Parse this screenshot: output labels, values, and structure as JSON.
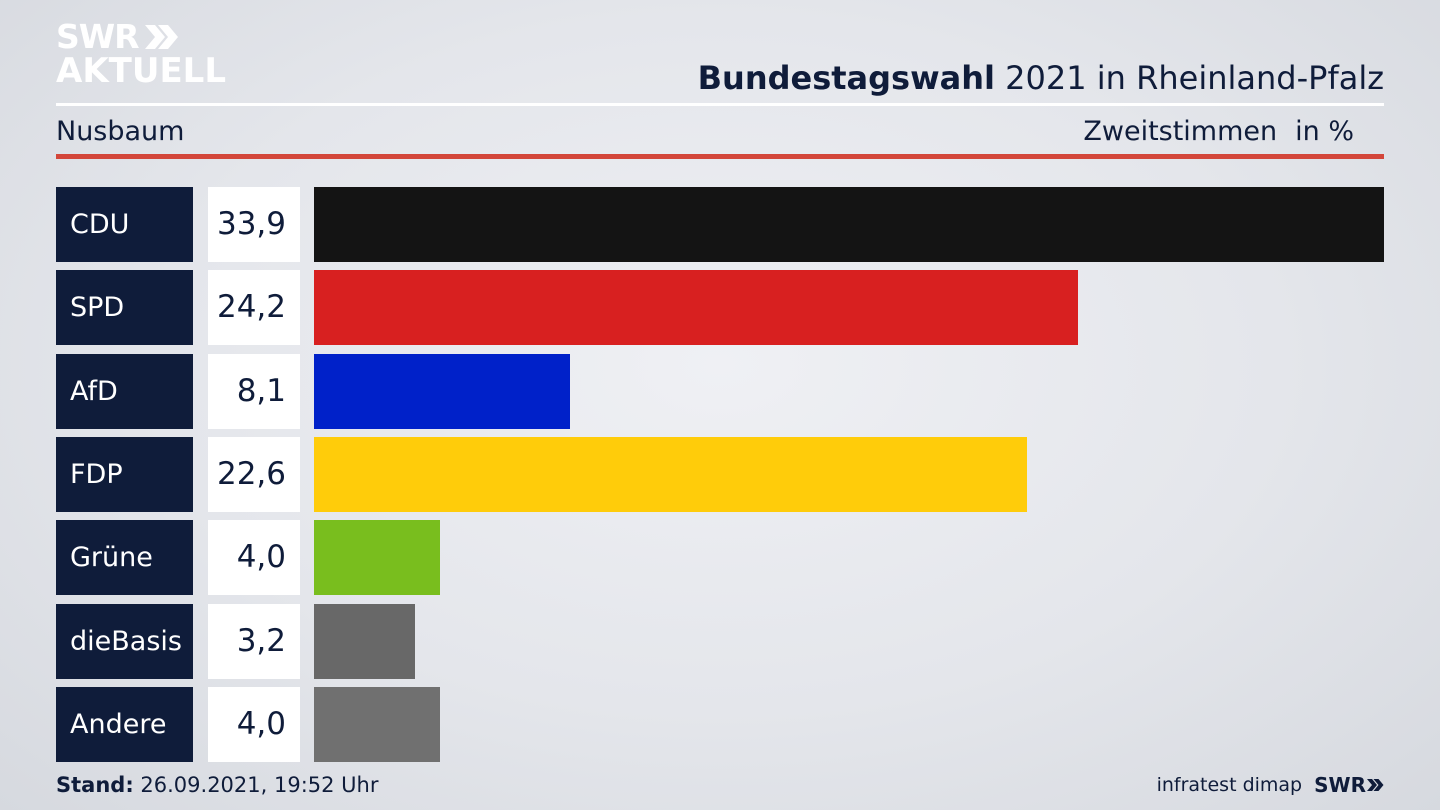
{
  "brand": {
    "line1": "SWR",
    "line2": "AKTUELL"
  },
  "header": {
    "title_bold": "Bundestagswahl",
    "title_rest": " 2021 in Rheinland-Pfalz",
    "subtitle": "Nusbaum",
    "metric": "Zweitstimmen",
    "unit": "in %"
  },
  "colors": {
    "navy": "#0f1c3a",
    "accent_red": "#d3463a"
  },
  "chart_data": {
    "type": "bar",
    "orientation": "horizontal",
    "categories": [
      "CDU",
      "SPD",
      "AfD",
      "FDP",
      "Grüne",
      "dieBasis",
      "Andere"
    ],
    "values": [
      33.9,
      24.2,
      8.1,
      22.6,
      4.0,
      3.2,
      4.0
    ],
    "value_labels": [
      "33,9",
      "24,2",
      "8,1",
      "22,6",
      "4,0",
      "3,2",
      "4,0"
    ],
    "colors": [
      "#141414",
      "#d82020",
      "#0021c9",
      "#ffcc0a",
      "#79be1e",
      "#686868",
      "#707070"
    ],
    "xlim": [
      0,
      33.9
    ]
  },
  "footer": {
    "stand_label": "Stand:",
    "stand_value": " 26.09.2021, 19:52 Uhr",
    "source": "infratest dimap",
    "brand": "SWR"
  }
}
